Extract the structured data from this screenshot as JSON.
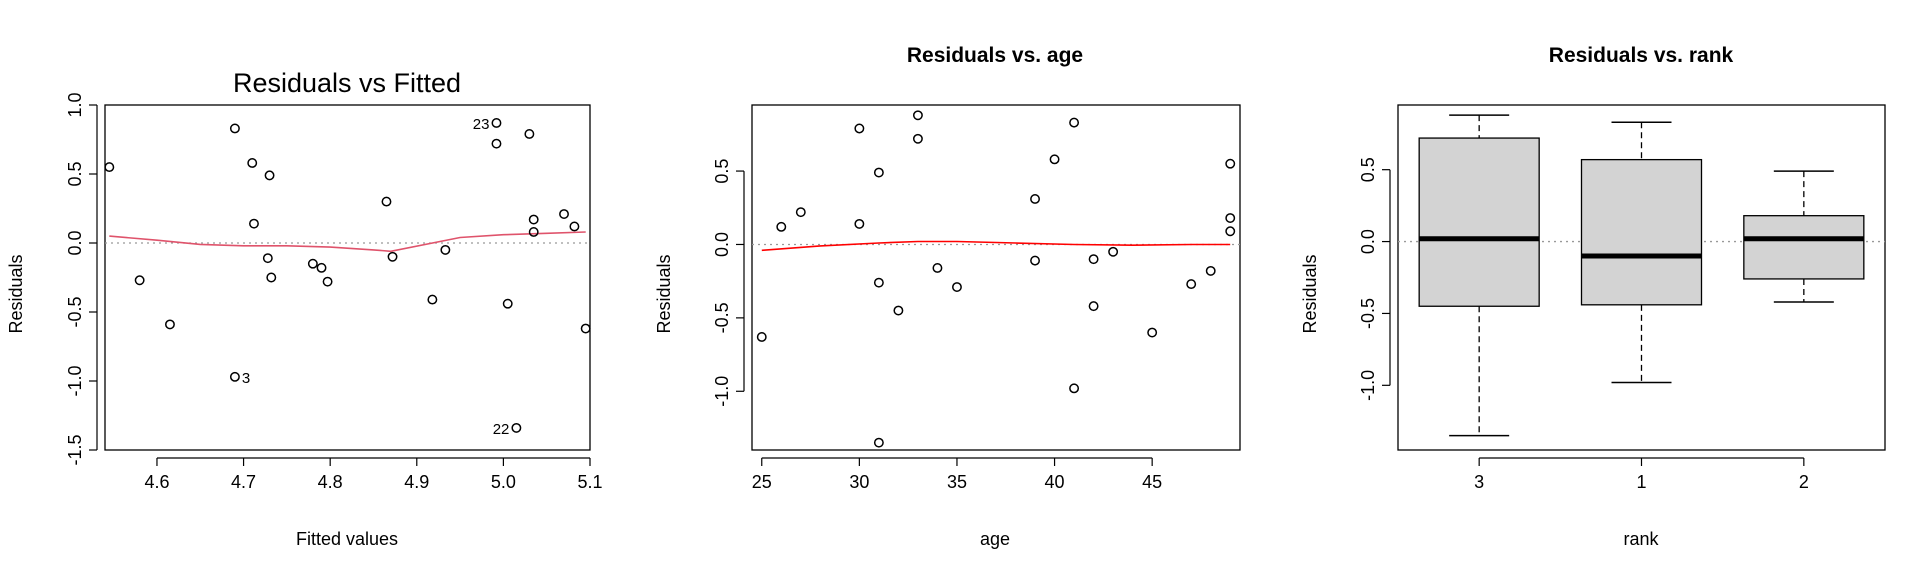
{
  "chart_data": [
    {
      "type": "scatter",
      "title": "Residuals vs Fitted",
      "xlabel": "Fitted values",
      "ylabel": "Residuals",
      "xlim": [
        4.54,
        5.1
      ],
      "ylim": [
        -1.5,
        1.0
      ],
      "xticks": [
        "4.6",
        "4.7",
        "4.8",
        "4.9",
        "5.0",
        "5.1"
      ],
      "yticks": [
        "-1.5",
        "-1.0",
        "-0.5",
        "0.0",
        "0.5",
        "1.0"
      ],
      "points": [
        {
          "x": 4.545,
          "y": 0.55
        },
        {
          "x": 4.58,
          "y": -0.27
        },
        {
          "x": 4.615,
          "y": -0.59
        },
        {
          "x": 4.69,
          "y": 0.83
        },
        {
          "x": 4.69,
          "y": -0.97
        },
        {
          "x": 4.71,
          "y": 0.58
        },
        {
          "x": 4.712,
          "y": 0.14
        },
        {
          "x": 4.73,
          "y": 0.49
        },
        {
          "x": 4.728,
          "y": -0.11
        },
        {
          "x": 4.732,
          "y": -0.25
        },
        {
          "x": 4.78,
          "y": -0.15
        },
        {
          "x": 4.79,
          "y": -0.18
        },
        {
          "x": 4.797,
          "y": -0.28
        },
        {
          "x": 4.865,
          "y": 0.3
        },
        {
          "x": 4.872,
          "y": -0.1
        },
        {
          "x": 4.918,
          "y": -0.41
        },
        {
          "x": 4.933,
          "y": -0.05
        },
        {
          "x": 4.992,
          "y": 0.87
        },
        {
          "x": 4.992,
          "y": 0.72
        },
        {
          "x": 5.005,
          "y": -0.44
        },
        {
          "x": 5.015,
          "y": -1.34
        },
        {
          "x": 5.03,
          "y": 0.79
        },
        {
          "x": 5.035,
          "y": 0.17
        },
        {
          "x": 5.035,
          "y": 0.08
        },
        {
          "x": 5.07,
          "y": 0.21
        },
        {
          "x": 5.082,
          "y": 0.12
        },
        {
          "x": 5.095,
          "y": -0.62
        }
      ],
      "smoother": [
        {
          "x": 4.545,
          "y": 0.05
        },
        {
          "x": 4.6,
          "y": 0.02
        },
        {
          "x": 4.65,
          "y": -0.01
        },
        {
          "x": 4.7,
          "y": -0.02
        },
        {
          "x": 4.75,
          "y": -0.02
        },
        {
          "x": 4.8,
          "y": -0.03
        },
        {
          "x": 4.85,
          "y": -0.05
        },
        {
          "x": 4.87,
          "y": -0.06
        },
        {
          "x": 4.95,
          "y": 0.04
        },
        {
          "x": 5.0,
          "y": 0.06
        },
        {
          "x": 5.05,
          "y": 0.07
        },
        {
          "x": 5.095,
          "y": 0.08
        }
      ],
      "labels": [
        {
          "text": "23",
          "x": 4.992,
          "y": 0.87,
          "side": "left"
        },
        {
          "text": "3",
          "x": 4.69,
          "y": -0.97,
          "side": "right"
        },
        {
          "text": "22",
          "x": 5.015,
          "y": -1.34,
          "side": "left"
        }
      ],
      "reference_line": 0,
      "smoother_color": "#DF536B"
    },
    {
      "type": "scatter",
      "title": "Residuals vs. age",
      "xlabel": "age",
      "ylabel": "Residuals",
      "xlim": [
        24.5,
        49.5
      ],
      "ylim": [
        -1.4,
        0.95
      ],
      "xticks": [
        "25",
        "30",
        "35",
        "40",
        "45"
      ],
      "yticks": [
        "-1.0",
        "-0.5",
        "0.0",
        "0.5"
      ],
      "points": [
        {
          "x": 25,
          "y": -0.63
        },
        {
          "x": 26,
          "y": 0.12
        },
        {
          "x": 27,
          "y": 0.22
        },
        {
          "x": 30,
          "y": 0.79
        },
        {
          "x": 30,
          "y": 0.14
        },
        {
          "x": 31,
          "y": 0.49
        },
        {
          "x": 31,
          "y": -0.26
        },
        {
          "x": 31,
          "y": -1.35
        },
        {
          "x": 32,
          "y": -0.45
        },
        {
          "x": 33,
          "y": 0.88
        },
        {
          "x": 33,
          "y": 0.72
        },
        {
          "x": 34,
          "y": -0.16
        },
        {
          "x": 35,
          "y": -0.29
        },
        {
          "x": 39,
          "y": 0.31
        },
        {
          "x": 39,
          "y": -0.11
        },
        {
          "x": 40,
          "y": 0.58
        },
        {
          "x": 41,
          "y": 0.83
        },
        {
          "x": 41,
          "y": -0.98
        },
        {
          "x": 42,
          "y": -0.1
        },
        {
          "x": 42,
          "y": -0.42
        },
        {
          "x": 43,
          "y": -0.05
        },
        {
          "x": 45,
          "y": -0.6
        },
        {
          "x": 47,
          "y": -0.27
        },
        {
          "x": 48,
          "y": -0.18
        },
        {
          "x": 49,
          "y": 0.55
        },
        {
          "x": 49,
          "y": 0.18
        },
        {
          "x": 49,
          "y": 0.09
        }
      ],
      "smoother": [
        {
          "x": 25,
          "y": -0.04
        },
        {
          "x": 28,
          "y": -0.01
        },
        {
          "x": 31,
          "y": 0.01
        },
        {
          "x": 33,
          "y": 0.02
        },
        {
          "x": 35,
          "y": 0.02
        },
        {
          "x": 38,
          "y": 0.01
        },
        {
          "x": 41,
          "y": 0.0
        },
        {
          "x": 44,
          "y": -0.005
        },
        {
          "x": 47,
          "y": 0.0
        },
        {
          "x": 49,
          "y": 0.0
        }
      ],
      "reference_line": 0,
      "smoother_color": "#FF0000"
    },
    {
      "type": "box",
      "title": "Residuals vs. rank",
      "xlabel": "rank",
      "ylabel": "Residuals",
      "ylim": [
        -1.45,
        0.95
      ],
      "yticks": [
        "-1.0",
        "-0.5",
        "0.0",
        "0.5"
      ],
      "categories": [
        "3",
        "1",
        "2"
      ],
      "boxes": [
        {
          "min": -1.35,
          "q1": -0.45,
          "median": 0.02,
          "q3": 0.72,
          "max": 0.88
        },
        {
          "min": -0.98,
          "q1": -0.44,
          "median": -0.1,
          "q3": 0.57,
          "max": 0.83
        },
        {
          "min": -0.42,
          "q1": -0.26,
          "median": 0.02,
          "q3": 0.18,
          "max": 0.49
        }
      ],
      "reference_line": 0,
      "box_fill": "#D3D3D3"
    }
  ]
}
